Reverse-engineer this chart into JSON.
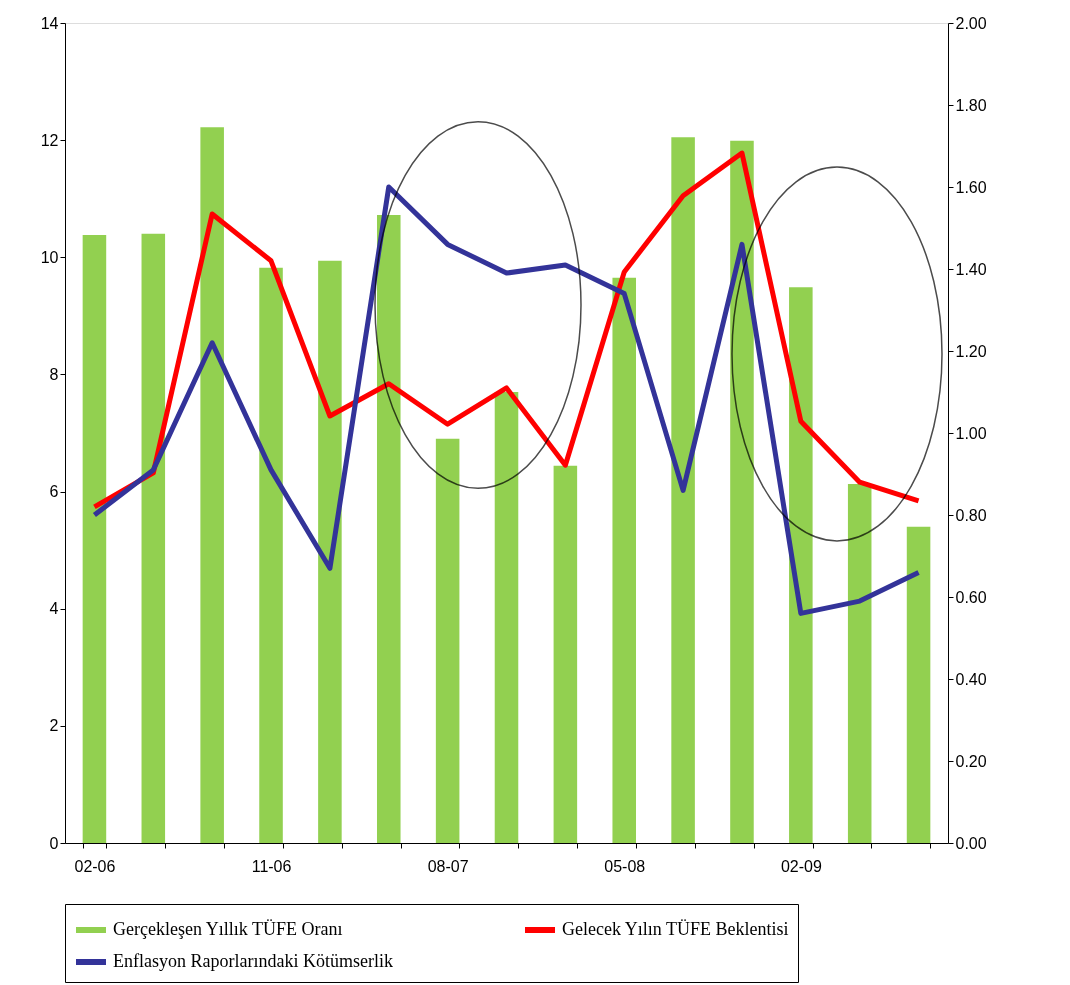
{
  "chart_data": {
    "type": "bar",
    "categories": [
      "02-06",
      null,
      null,
      "11-06",
      null,
      null,
      "08-07",
      null,
      null,
      "05-08",
      null,
      null,
      "02-09",
      null,
      null
    ],
    "series": [
      {
        "name": "Gerçekleşen Yıllık TÜFE Oranı",
        "color": "#92d050",
        "values": [
          10.38,
          10.4,
          12.22,
          9.82,
          9.94,
          10.72,
          6.9,
          7.7,
          6.44,
          9.65,
          12.05,
          11.99,
          9.49,
          6.13,
          5.4
        ]
      },
      {
        "name": "Gelecek Yılın TÜFE Beklentisi",
        "type": "line",
        "color": "#ff0000",
        "values": [
          5.74,
          6.32,
          10.74,
          9.94,
          7.29,
          7.84,
          7.15,
          7.77,
          6.45,
          9.75,
          11.05,
          11.78,
          7.2,
          6.16,
          5.84
        ]
      },
      {
        "name": "Enflasyon Raporlarındaki Kötümserlik",
        "type": "line",
        "axis": "y2",
        "color": "#333399",
        "values": [
          0.8,
          0.91,
          1.22,
          0.91,
          0.67,
          1.6,
          1.46,
          1.39,
          1.41,
          1.34,
          0.86,
          1.46,
          0.56,
          0.59,
          0.66
        ]
      }
    ],
    "ylim": [
      0,
      14
    ],
    "yticks": [
      0,
      2,
      4,
      6,
      8,
      10,
      12,
      14
    ],
    "y2lim": [
      0,
      2
    ],
    "y2ticks": [
      {
        "value": 0,
        "label": "0.00"
      },
      {
        "value": 0.2,
        "label": "0.20"
      },
      {
        "value": 0.4,
        "label": "0.40"
      },
      {
        "value": 0.6,
        "label": "0.60"
      },
      {
        "value": 0.8,
        "label": "0.80"
      },
      {
        "value": 1,
        "label": "1.00"
      },
      {
        "value": 1.2,
        "label": "1.20"
      },
      {
        "value": 1.4,
        "label": "1.40"
      },
      {
        "value": 1.6,
        "label": "1.60"
      },
      {
        "value": 1.8,
        "label": "1.80"
      },
      {
        "value": 2,
        "label": "2.00"
      }
    ],
    "grid": false,
    "legend": "bottom",
    "marker": "none",
    "line_style": "solid"
  }
}
